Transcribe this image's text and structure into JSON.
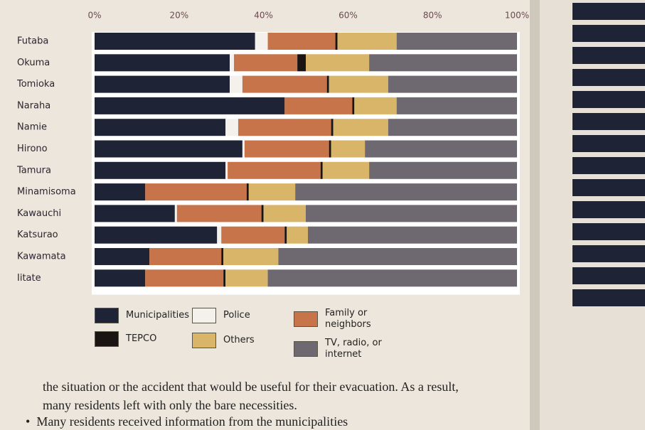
{
  "chart_data": {
    "type": "stacked-bar-horizontal",
    "categories": [
      "Futaba",
      "Okuma",
      "Tomioka",
      "Naraha",
      "Namie",
      "Hirono",
      "Tamura",
      "Minamisoma",
      "Kawauchi",
      "Katsurao",
      "Kawamata",
      "Iitate"
    ],
    "series": [
      {
        "name": "Municipalities",
        "color": "#1f2336",
        "values": [
          38,
          32,
          32,
          45,
          31,
          35,
          31,
          12,
          19,
          29,
          13,
          12
        ]
      },
      {
        "name": "Police",
        "color": "#f4f1ec",
        "values": [
          3,
          1,
          3,
          0,
          3,
          0.5,
          0.5,
          0,
          0.5,
          1,
          0,
          0
        ]
      },
      {
        "name": "Family or neighbors",
        "color": "#c8744a",
        "values": [
          16,
          15,
          20,
          16,
          22,
          20,
          22,
          24,
          20,
          15,
          17,
          18.5
        ]
      },
      {
        "name": "TEPCO",
        "color": "#1a1412",
        "values": [
          0.5,
          2,
          0.5,
          0.5,
          0.5,
          0.5,
          0.5,
          0.5,
          0.5,
          0.5,
          0.5,
          0.5
        ]
      },
      {
        "name": "Others",
        "color": "#d9b56a",
        "values": [
          14,
          15,
          14,
          10,
          13,
          8,
          11,
          11,
          10,
          5,
          13,
          10
        ]
      },
      {
        "name": "TV, radio, or internet",
        "color": "#6e6870",
        "values": [
          28.5,
          35,
          30.5,
          28.5,
          30.5,
          36,
          35,
          52.5,
          50,
          49.5,
          56.5,
          59
        ]
      }
    ],
    "xlim": [
      0,
      100
    ],
    "xticks": [
      {
        "value": 0,
        "label": "0%"
      },
      {
        "value": 20,
        "label": "20%"
      },
      {
        "value": 40,
        "label": "40%"
      },
      {
        "value": 60,
        "label": "60%"
      },
      {
        "value": 80,
        "label": "80%"
      },
      {
        "value": 100,
        "label": "100%"
      }
    ],
    "grid": false
  },
  "body_text": [
    "the situation or the accident that would be useful for their evacuation. As a result,",
    "many residents left with only the bare necessities.",
    "Many residents received information from the municipalities"
  ]
}
